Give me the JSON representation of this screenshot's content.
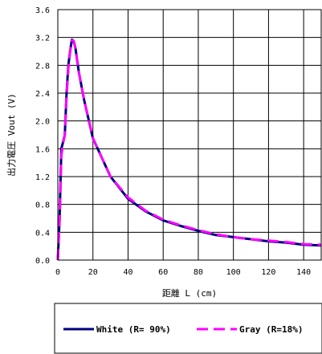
{
  "chart_data": {
    "type": "line",
    "xlabel": "距離 L (cm)",
    "ylabel": "出力電圧 Vout (V)",
    "xlim": [
      0,
      150
    ],
    "ylim": [
      0,
      3.6
    ],
    "x_ticks": [
      0,
      20,
      40,
      60,
      80,
      100,
      120,
      140
    ],
    "y_ticks": [
      0.0,
      0.4,
      0.8,
      1.2,
      1.6,
      2.0,
      2.4,
      2.8,
      3.2,
      3.6
    ],
    "grid": true,
    "legend_position": "bottom",
    "series": [
      {
        "name": "White (R= 90%)",
        "color": "#000080",
        "style": "solid",
        "x": [
          0,
          1,
          2,
          3,
          4,
          5,
          6,
          7,
          8,
          9,
          10,
          12,
          15,
          20,
          30,
          40,
          50,
          60,
          70,
          80,
          90,
          100,
          110,
          120,
          130,
          140,
          150
        ],
        "y": [
          0.0,
          0.6,
          1.6,
          1.7,
          1.8,
          2.4,
          2.8,
          3.0,
          3.17,
          3.15,
          3.05,
          2.7,
          2.3,
          1.75,
          1.2,
          0.88,
          0.7,
          0.57,
          0.49,
          0.42,
          0.36,
          0.33,
          0.3,
          0.27,
          0.25,
          0.22,
          0.21
        ]
      },
      {
        "name": "Gray (R=18%)",
        "color": "#ff00ff",
        "style": "dashed",
        "x": [
          0,
          1,
          2,
          3,
          4,
          5,
          6,
          7,
          8,
          9,
          10,
          12,
          15,
          20,
          30,
          40,
          50,
          60,
          70,
          80,
          90,
          100,
          110,
          120,
          130,
          140,
          150
        ],
        "y": [
          0.0,
          0.55,
          1.5,
          1.68,
          1.8,
          2.35,
          2.75,
          3.0,
          3.16,
          3.15,
          3.05,
          2.7,
          2.3,
          1.75,
          1.2,
          0.9,
          0.71,
          0.58,
          0.5,
          0.43,
          0.37,
          0.33,
          0.3,
          0.28,
          0.26,
          0.23,
          0.22
        ]
      }
    ]
  }
}
